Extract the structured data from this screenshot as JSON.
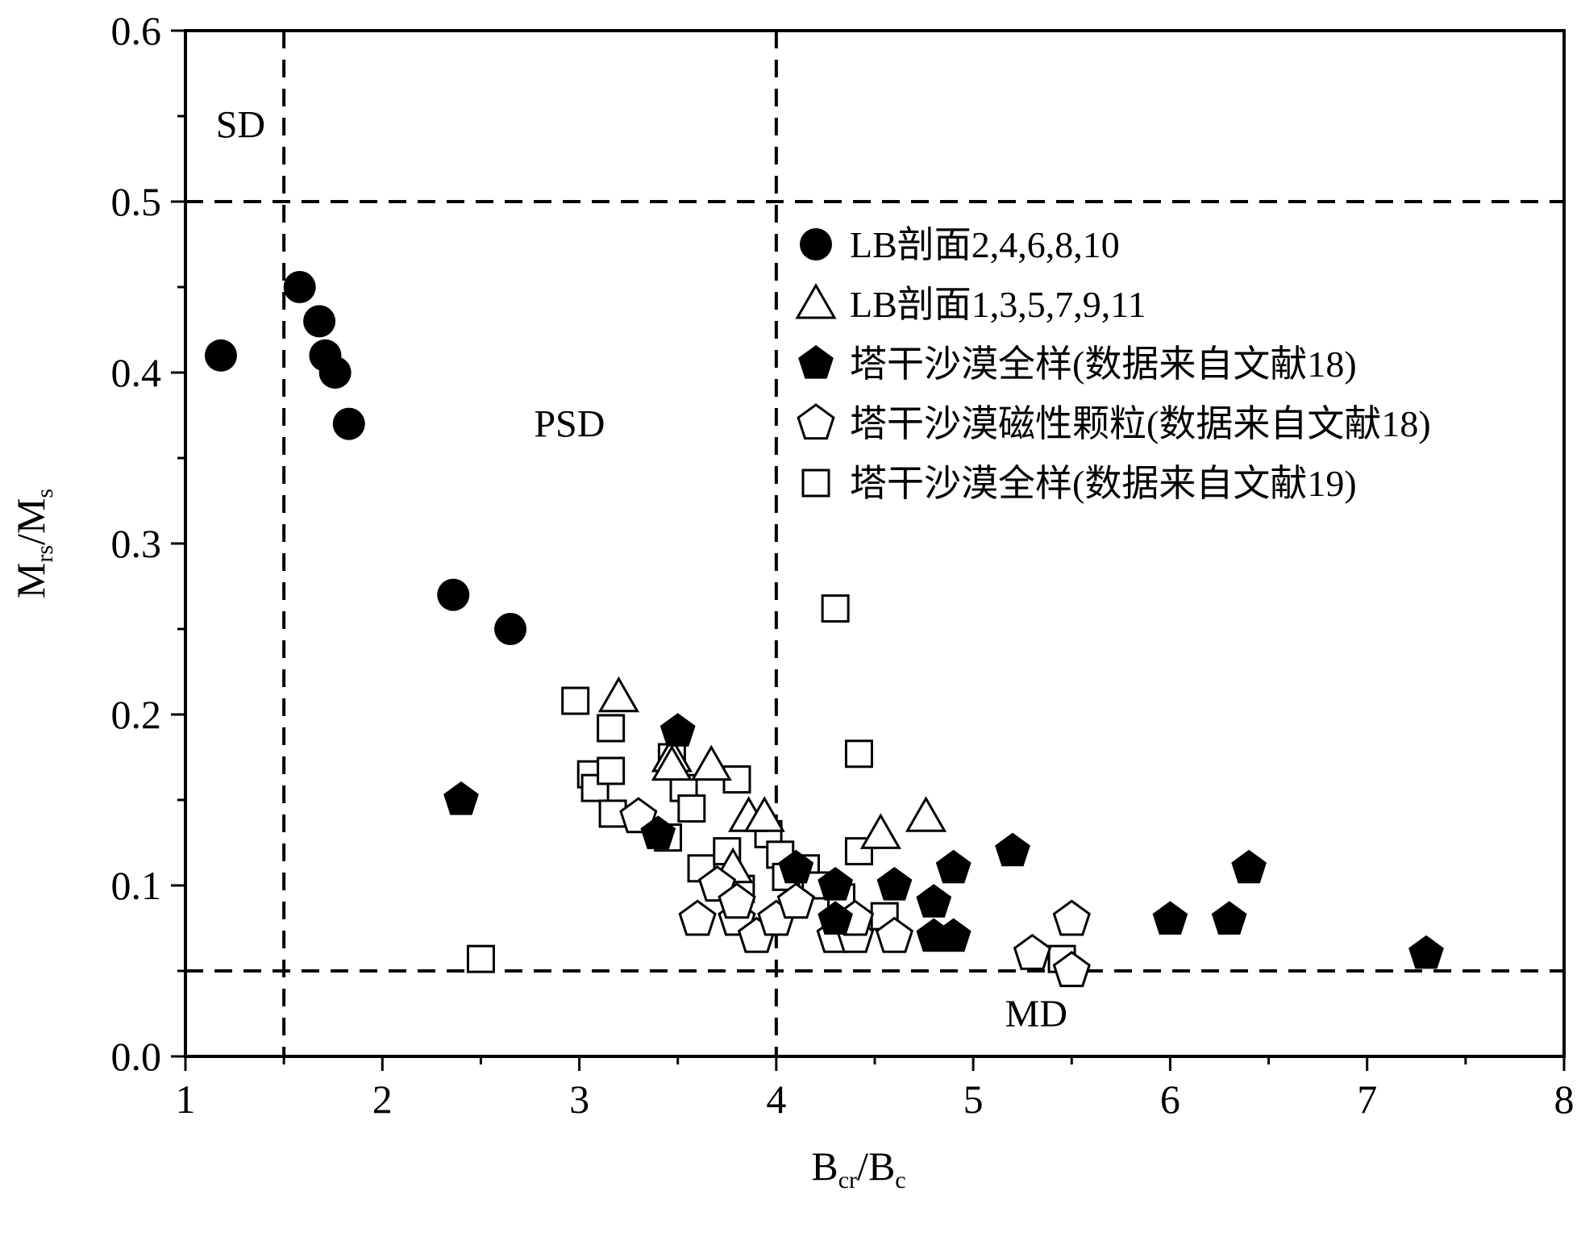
{
  "chart_data": {
    "type": "scatter",
    "x_axis": {
      "label_main": "B",
      "label_sub1": "cr",
      "label_mid": "/B",
      "label_sub2": "c",
      "range": [
        1,
        8
      ],
      "ticks": [
        1,
        2,
        3,
        4,
        5,
        6,
        7,
        8
      ],
      "tick_labels": [
        "1",
        "2",
        "3",
        "4",
        "5",
        "6",
        "7",
        "8"
      ]
    },
    "y_axis": {
      "label_main": "M",
      "label_sub1": "rs",
      "label_mid": "/M",
      "label_sub2": "s",
      "range": [
        0,
        0.6
      ],
      "ticks": [
        0,
        0.1,
        0.2,
        0.3,
        0.4,
        0.5,
        0.6
      ],
      "tick_labels": [
        "0.0",
        "0.1",
        "0.2",
        "0.3",
        "0.4",
        "0.5",
        "0.6"
      ]
    },
    "grid": false,
    "legend_position": "upper-right",
    "reference_lines": {
      "vertical_x": [
        1.5,
        4
      ],
      "horizontal_y": [
        0.5,
        0.05
      ]
    },
    "regions": [
      {
        "label": "SD",
        "x": 1.28,
        "y": 0.545
      },
      {
        "label": "PSD",
        "x": 2.95,
        "y": 0.37
      },
      {
        "label": "MD",
        "x": 5.32,
        "y": 0.025
      }
    ],
    "series": [
      {
        "name": "LB剖面2,4,6,8,10",
        "marker": "filled-circle",
        "points": [
          [
            1.18,
            0.41
          ],
          [
            1.58,
            0.45
          ],
          [
            1.68,
            0.43
          ],
          [
            1.71,
            0.41
          ],
          [
            1.76,
            0.4
          ],
          [
            1.83,
            0.37
          ],
          [
            2.36,
            0.27
          ],
          [
            2.65,
            0.25
          ]
        ]
      },
      {
        "name": "LB剖面1,3,5,7,9,11",
        "marker": "open-triangle",
        "points": [
          [
            3.2,
            0.21
          ],
          [
            3.47,
            0.175
          ],
          [
            3.47,
            0.17
          ],
          [
            3.67,
            0.17
          ],
          [
            3.78,
            0.11
          ],
          [
            3.86,
            0.14
          ],
          [
            3.94,
            0.14
          ],
          [
            4.53,
            0.13
          ],
          [
            4.76,
            0.14
          ]
        ]
      },
      {
        "name": "塔干沙漠全样(数据来自文献18)",
        "marker": "filled-pentagon",
        "points": [
          [
            2.4,
            0.15
          ],
          [
            3.4,
            0.13
          ],
          [
            3.5,
            0.19
          ],
          [
            4.1,
            0.11
          ],
          [
            4.3,
            0.08
          ],
          [
            4.3,
            0.1
          ],
          [
            4.6,
            0.1
          ],
          [
            4.8,
            0.09
          ],
          [
            4.8,
            0.07
          ],
          [
            4.9,
            0.07
          ],
          [
            4.9,
            0.11
          ],
          [
            5.2,
            0.12
          ],
          [
            6.0,
            0.08
          ],
          [
            6.3,
            0.08
          ],
          [
            6.4,
            0.11
          ],
          [
            7.3,
            0.06
          ]
        ]
      },
      {
        "name": "塔干沙漠磁性颗粒(数据来自文献18)",
        "marker": "open-pentagon",
        "points": [
          [
            3.3,
            0.14
          ],
          [
            3.6,
            0.08
          ],
          [
            3.7,
            0.1
          ],
          [
            3.8,
            0.08
          ],
          [
            3.8,
            0.09
          ],
          [
            3.9,
            0.07
          ],
          [
            4.0,
            0.08
          ],
          [
            4.1,
            0.09
          ],
          [
            4.3,
            0.07
          ],
          [
            4.4,
            0.07
          ],
          [
            4.4,
            0.08
          ],
          [
            4.6,
            0.07
          ],
          [
            5.3,
            0.06
          ],
          [
            5.5,
            0.05
          ],
          [
            5.5,
            0.08
          ]
        ]
      },
      {
        "name": "塔干沙漠全样(数据来自文献19)",
        "marker": "open-square",
        "points": [
          [
            2.5,
            0.057
          ],
          [
            2.98,
            0.208
          ],
          [
            3.06,
            0.165
          ],
          [
            3.08,
            0.157
          ],
          [
            3.16,
            0.192
          ],
          [
            3.16,
            0.167
          ],
          [
            3.17,
            0.142
          ],
          [
            3.45,
            0.128
          ],
          [
            3.47,
            0.175
          ],
          [
            3.53,
            0.157
          ],
          [
            3.57,
            0.145
          ],
          [
            3.62,
            0.11
          ],
          [
            3.75,
            0.12
          ],
          [
            3.8,
            0.162
          ],
          [
            3.82,
            0.098
          ],
          [
            3.96,
            0.13
          ],
          [
            4.02,
            0.118
          ],
          [
            4.05,
            0.105
          ],
          [
            4.15,
            0.11
          ],
          [
            4.2,
            0.1
          ],
          [
            4.3,
            0.262
          ],
          [
            4.33,
            0.093
          ],
          [
            4.42,
            0.12
          ],
          [
            4.42,
            0.177
          ],
          [
            4.55,
            0.082
          ],
          [
            5.45,
            0.057
          ]
        ]
      }
    ]
  }
}
